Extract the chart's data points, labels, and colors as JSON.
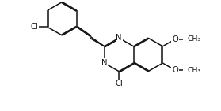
{
  "background": "#ffffff",
  "line_color": "#111111",
  "lw": 1.1,
  "dbo": 0.055,
  "fs": 7.2,
  "figsize": [
    2.79,
    1.41
  ],
  "dpi": 100,
  "xlim": [
    -1.5,
    9.5
  ],
  "ylim": [
    -1.5,
    5.0
  ]
}
